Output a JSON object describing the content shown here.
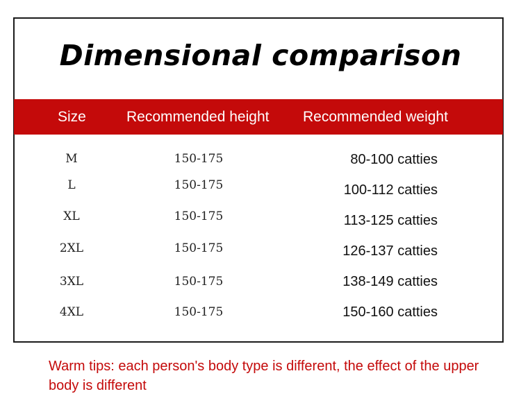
{
  "title": "Dimensional comparison",
  "colors": {
    "header_bg": "#c40a0a",
    "header_text": "#ffffff",
    "tips_text": "#c40a0a",
    "border": "#1a1a1a"
  },
  "table": {
    "headers": [
      "Size",
      "Recommended height",
      "Recommended weight"
    ],
    "rows": [
      {
        "size": "M",
        "height": "150-175",
        "weight": "80-100 catties"
      },
      {
        "size": "L",
        "height": "150-175",
        "weight": "100-112 catties"
      },
      {
        "size": "XL",
        "height": "150-175",
        "weight": "113-125 catties"
      },
      {
        "size": "2XL",
        "height": "150-175",
        "weight": "126-137 catties"
      },
      {
        "size": "3XL",
        "height": "150-175",
        "weight": "138-149 catties"
      },
      {
        "size": "4XL",
        "height": "150-175",
        "weight": "150-160 catties"
      }
    ]
  },
  "tips": "Warm tips: each person's body type is different, the effect of the upper body is different"
}
